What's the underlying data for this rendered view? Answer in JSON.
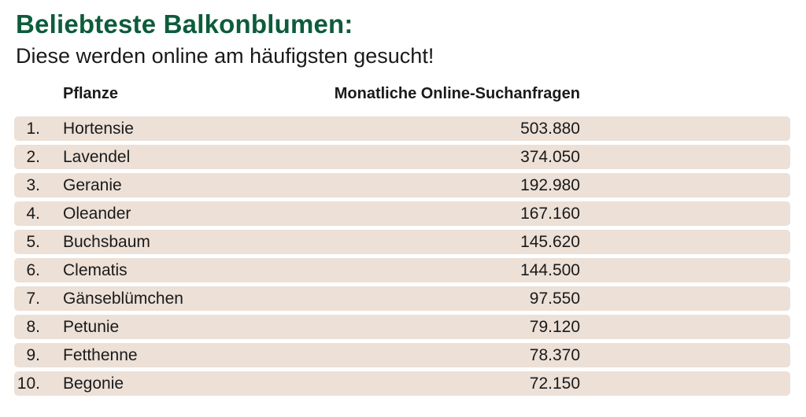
{
  "title": "Beliebteste Balkonblumen:",
  "subtitle": "Diese werden online am häufigsten gesucht!",
  "colors": {
    "title": "#0d5c3c",
    "row_background": "#ece0d7"
  },
  "chart_data": {
    "type": "table",
    "columns": [
      "Pflanze",
      "Monatliche Online-Suchanfragen"
    ],
    "rows": [
      {
        "rank": "1.",
        "plant": "Hortensie",
        "value": "503.880"
      },
      {
        "rank": "2.",
        "plant": "Lavendel",
        "value": "374.050"
      },
      {
        "rank": "3.",
        "plant": "Geranie",
        "value": "192.980"
      },
      {
        "rank": "4.",
        "plant": "Oleander",
        "value": "167.160"
      },
      {
        "rank": "5.",
        "plant": "Buchsbaum",
        "value": "145.620"
      },
      {
        "rank": "6.",
        "plant": "Clematis",
        "value": "144.500"
      },
      {
        "rank": "7.",
        "plant": "Gänseblümchen",
        "value": "97.550"
      },
      {
        "rank": "8.",
        "plant": "Petunie",
        "value": "79.120"
      },
      {
        "rank": "9.",
        "plant": "Fetthenne",
        "value": "78.370"
      },
      {
        "rank": "10.",
        "plant": "Begonie",
        "value": "72.150"
      }
    ]
  }
}
